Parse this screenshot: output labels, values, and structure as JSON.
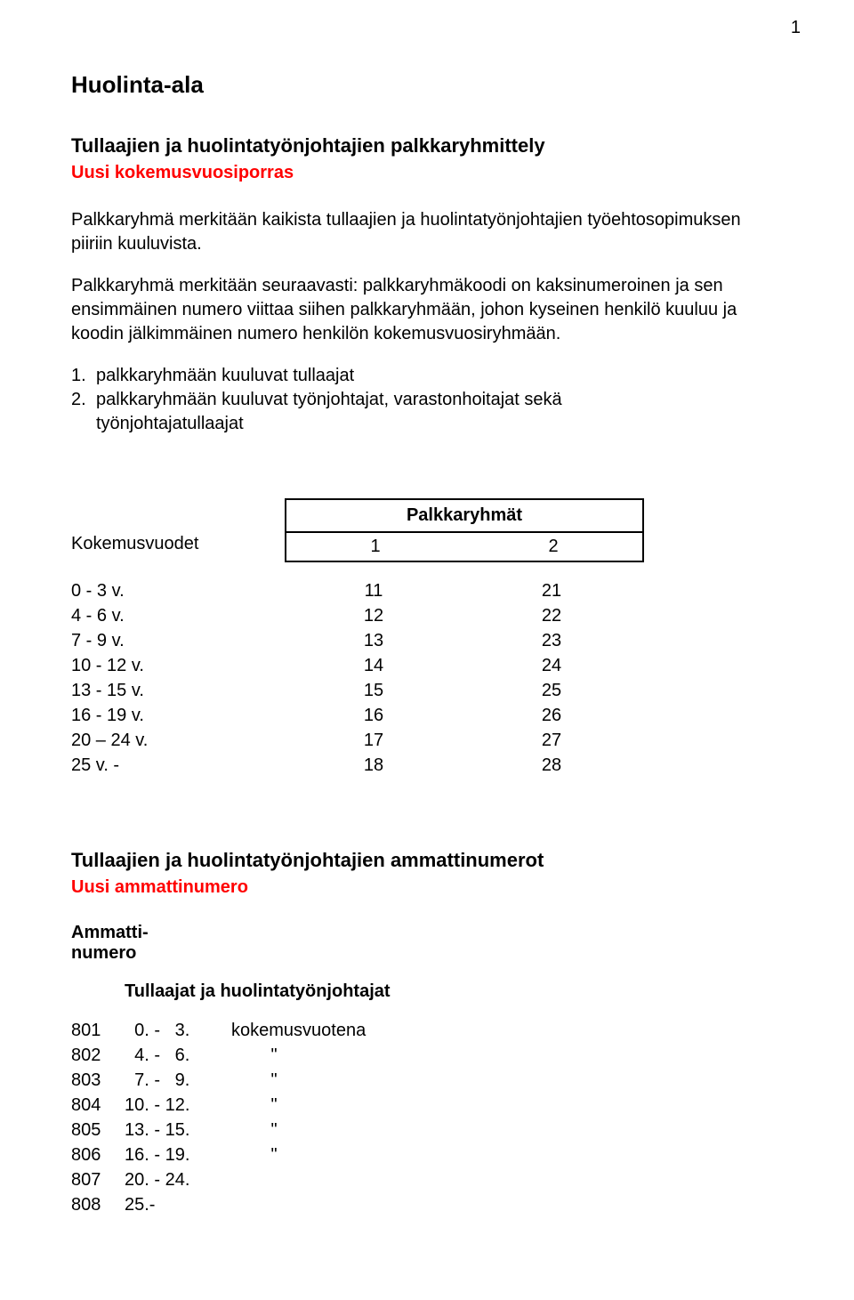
{
  "page_number": "1",
  "doc_title": "Huolinta-ala",
  "section1": {
    "title": "Tullaajien ja huolintatyönjohtajien palkkaryhmittely",
    "subtitle": "Uusi kokemusvuosiporras",
    "para1": "Palkkaryhmä merkitään kaikista tullaajien ja huolintatyönjohtajien työehtosopimuksen piiriin kuuluvista.",
    "para2": "Palkkaryhmä merkitään seuraavasti: palkkaryhmäkoodi on kaksinumeroinen ja sen ensimmäinen numero viittaa siihen palkkaryhmään, johon kyseinen henkilö kuuluu ja koodin jälkimmäinen numero henkilön kokemusvuosiryhmään.",
    "list": [
      {
        "num": "1.",
        "text": "palkkaryhmään kuuluvat tullaajat"
      },
      {
        "num": "2.",
        "text": "palkkaryhmään kuuluvat työnjohtajat, varastonhoitajat sekä",
        "cont": "työnjohtajatullaajat"
      }
    ]
  },
  "pk_table": {
    "left_label": "Kokemusvuodet",
    "header": "Palkkaryhmät",
    "col_headers": [
      "1",
      "2"
    ],
    "rows": [
      {
        "k": "0 -   3 v.",
        "a": "11",
        "b": "21"
      },
      {
        "k": "4 -   6 v.",
        "a": "12",
        "b": "22"
      },
      {
        "k": "7 -   9 v.",
        "a": "13",
        "b": "23"
      },
      {
        "k": "10 - 12 v.",
        "a": "14",
        "b": "24"
      },
      {
        "k": "13 - 15 v.",
        "a": "15",
        "b": "25"
      },
      {
        "k": "16 - 19 v.",
        "a": "16",
        "b": "26"
      },
      {
        "k": "20 – 24 v.",
        "a": "17",
        "b": "27"
      },
      {
        "k": "25 v. -",
        "a": "18",
        "b": "28"
      }
    ]
  },
  "section2": {
    "title": "Tullaajien ja huolintatyönjohtajien ammattinumerot",
    "subtitle": "Uusi ammattinumero",
    "col_head": "Ammatti-\nnumero",
    "sub_head": "Tullaajat ja huolintatyönjohtajat",
    "rows": [
      {
        "code": "801",
        "range": "  0. -   3.",
        "note": "kokemusvuotena"
      },
      {
        "code": "802",
        "range": "  4. -   6.",
        "note": "        \""
      },
      {
        "code": "803",
        "range": "  7. -   9.",
        "note": "        \""
      },
      {
        "code": "804",
        "range": "10. - 12.",
        "note": "        \""
      },
      {
        "code": "805",
        "range": "13. - 15.",
        "note": "        \""
      },
      {
        "code": "806",
        "range": "16. - 19.",
        "note": "        \""
      },
      {
        "code": "807",
        "range": "20. - 24.",
        "note": ""
      },
      {
        "code": "808",
        "range": "25.-",
        "note": ""
      }
    ]
  },
  "colors": {
    "text": "#000000",
    "red": "#ff0000",
    "background": "#ffffff",
    "border": "#000000"
  },
  "fonts": {
    "family": "Arial",
    "body_size_pt": 15,
    "title_size_pt": 20
  }
}
